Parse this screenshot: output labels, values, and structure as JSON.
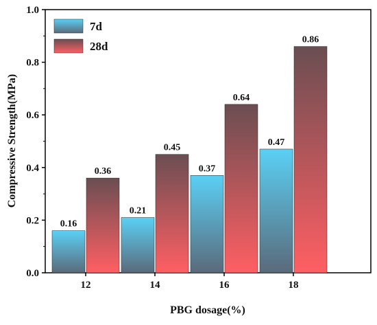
{
  "chart_data": {
    "type": "bar",
    "title": "",
    "xlabel": "PBG dosage(%)",
    "ylabel": "Compressive Strength(MPa)",
    "categories": [
      "12",
      "14",
      "16",
      "18"
    ],
    "ylim": [
      0,
      1.0
    ],
    "yticks": [
      "0.0",
      "0.2",
      "0.4",
      "0.6",
      "0.8",
      "1.0"
    ],
    "series": [
      {
        "name": "7d",
        "values": [
          0.16,
          0.21,
          0.37,
          0.47
        ],
        "labels": [
          "0.16",
          "0.21",
          "0.37",
          "0.47"
        ],
        "color_top": "#5ad0f5",
        "color_bottom": "#5a6a7a"
      },
      {
        "name": "28d",
        "values": [
          0.36,
          0.45,
          0.64,
          0.86
        ],
        "labels": [
          "0.36",
          "0.45",
          "0.64",
          "0.86"
        ],
        "color_top": "#6a4e52",
        "color_bottom": "#ff5f63"
      }
    ],
    "legend_position": "top-left",
    "grid": false
  }
}
